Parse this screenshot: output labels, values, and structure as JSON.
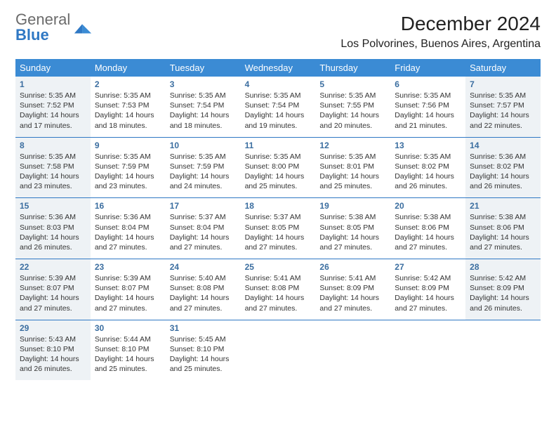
{
  "brand": {
    "word1": "General",
    "word2": "Blue"
  },
  "title": "December 2024",
  "location": "Los Polvorines, Buenos Aires, Argentina",
  "accent_color": "#3b8bd4",
  "rule_color": "#2f78c4",
  "shade_color": "#eef2f5",
  "day_headers": [
    "Sunday",
    "Monday",
    "Tuesday",
    "Wednesday",
    "Thursday",
    "Friday",
    "Saturday"
  ],
  "weeks": [
    [
      {
        "n": "1",
        "shade": true,
        "sunrise": "Sunrise: 5:35 AM",
        "sunset": "Sunset: 7:52 PM",
        "dl1": "Daylight: 14 hours",
        "dl2": "and 17 minutes."
      },
      {
        "n": "2",
        "shade": false,
        "sunrise": "Sunrise: 5:35 AM",
        "sunset": "Sunset: 7:53 PM",
        "dl1": "Daylight: 14 hours",
        "dl2": "and 18 minutes."
      },
      {
        "n": "3",
        "shade": false,
        "sunrise": "Sunrise: 5:35 AM",
        "sunset": "Sunset: 7:54 PM",
        "dl1": "Daylight: 14 hours",
        "dl2": "and 18 minutes."
      },
      {
        "n": "4",
        "shade": false,
        "sunrise": "Sunrise: 5:35 AM",
        "sunset": "Sunset: 7:54 PM",
        "dl1": "Daylight: 14 hours",
        "dl2": "and 19 minutes."
      },
      {
        "n": "5",
        "shade": false,
        "sunrise": "Sunrise: 5:35 AM",
        "sunset": "Sunset: 7:55 PM",
        "dl1": "Daylight: 14 hours",
        "dl2": "and 20 minutes."
      },
      {
        "n": "6",
        "shade": false,
        "sunrise": "Sunrise: 5:35 AM",
        "sunset": "Sunset: 7:56 PM",
        "dl1": "Daylight: 14 hours",
        "dl2": "and 21 minutes."
      },
      {
        "n": "7",
        "shade": true,
        "sunrise": "Sunrise: 5:35 AM",
        "sunset": "Sunset: 7:57 PM",
        "dl1": "Daylight: 14 hours",
        "dl2": "and 22 minutes."
      }
    ],
    [
      {
        "n": "8",
        "shade": true,
        "sunrise": "Sunrise: 5:35 AM",
        "sunset": "Sunset: 7:58 PM",
        "dl1": "Daylight: 14 hours",
        "dl2": "and 23 minutes."
      },
      {
        "n": "9",
        "shade": false,
        "sunrise": "Sunrise: 5:35 AM",
        "sunset": "Sunset: 7:59 PM",
        "dl1": "Daylight: 14 hours",
        "dl2": "and 23 minutes."
      },
      {
        "n": "10",
        "shade": false,
        "sunrise": "Sunrise: 5:35 AM",
        "sunset": "Sunset: 7:59 PM",
        "dl1": "Daylight: 14 hours",
        "dl2": "and 24 minutes."
      },
      {
        "n": "11",
        "shade": false,
        "sunrise": "Sunrise: 5:35 AM",
        "sunset": "Sunset: 8:00 PM",
        "dl1": "Daylight: 14 hours",
        "dl2": "and 25 minutes."
      },
      {
        "n": "12",
        "shade": false,
        "sunrise": "Sunrise: 5:35 AM",
        "sunset": "Sunset: 8:01 PM",
        "dl1": "Daylight: 14 hours",
        "dl2": "and 25 minutes."
      },
      {
        "n": "13",
        "shade": false,
        "sunrise": "Sunrise: 5:35 AM",
        "sunset": "Sunset: 8:02 PM",
        "dl1": "Daylight: 14 hours",
        "dl2": "and 26 minutes."
      },
      {
        "n": "14",
        "shade": true,
        "sunrise": "Sunrise: 5:36 AM",
        "sunset": "Sunset: 8:02 PM",
        "dl1": "Daylight: 14 hours",
        "dl2": "and 26 minutes."
      }
    ],
    [
      {
        "n": "15",
        "shade": true,
        "sunrise": "Sunrise: 5:36 AM",
        "sunset": "Sunset: 8:03 PM",
        "dl1": "Daylight: 14 hours",
        "dl2": "and 26 minutes."
      },
      {
        "n": "16",
        "shade": false,
        "sunrise": "Sunrise: 5:36 AM",
        "sunset": "Sunset: 8:04 PM",
        "dl1": "Daylight: 14 hours",
        "dl2": "and 27 minutes."
      },
      {
        "n": "17",
        "shade": false,
        "sunrise": "Sunrise: 5:37 AM",
        "sunset": "Sunset: 8:04 PM",
        "dl1": "Daylight: 14 hours",
        "dl2": "and 27 minutes."
      },
      {
        "n": "18",
        "shade": false,
        "sunrise": "Sunrise: 5:37 AM",
        "sunset": "Sunset: 8:05 PM",
        "dl1": "Daylight: 14 hours",
        "dl2": "and 27 minutes."
      },
      {
        "n": "19",
        "shade": false,
        "sunrise": "Sunrise: 5:38 AM",
        "sunset": "Sunset: 8:05 PM",
        "dl1": "Daylight: 14 hours",
        "dl2": "and 27 minutes."
      },
      {
        "n": "20",
        "shade": false,
        "sunrise": "Sunrise: 5:38 AM",
        "sunset": "Sunset: 8:06 PM",
        "dl1": "Daylight: 14 hours",
        "dl2": "and 27 minutes."
      },
      {
        "n": "21",
        "shade": true,
        "sunrise": "Sunrise: 5:38 AM",
        "sunset": "Sunset: 8:06 PM",
        "dl1": "Daylight: 14 hours",
        "dl2": "and 27 minutes."
      }
    ],
    [
      {
        "n": "22",
        "shade": true,
        "sunrise": "Sunrise: 5:39 AM",
        "sunset": "Sunset: 8:07 PM",
        "dl1": "Daylight: 14 hours",
        "dl2": "and 27 minutes."
      },
      {
        "n": "23",
        "shade": false,
        "sunrise": "Sunrise: 5:39 AM",
        "sunset": "Sunset: 8:07 PM",
        "dl1": "Daylight: 14 hours",
        "dl2": "and 27 minutes."
      },
      {
        "n": "24",
        "shade": false,
        "sunrise": "Sunrise: 5:40 AM",
        "sunset": "Sunset: 8:08 PM",
        "dl1": "Daylight: 14 hours",
        "dl2": "and 27 minutes."
      },
      {
        "n": "25",
        "shade": false,
        "sunrise": "Sunrise: 5:41 AM",
        "sunset": "Sunset: 8:08 PM",
        "dl1": "Daylight: 14 hours",
        "dl2": "and 27 minutes."
      },
      {
        "n": "26",
        "shade": false,
        "sunrise": "Sunrise: 5:41 AM",
        "sunset": "Sunset: 8:09 PM",
        "dl1": "Daylight: 14 hours",
        "dl2": "and 27 minutes."
      },
      {
        "n": "27",
        "shade": false,
        "sunrise": "Sunrise: 5:42 AM",
        "sunset": "Sunset: 8:09 PM",
        "dl1": "Daylight: 14 hours",
        "dl2": "and 27 minutes."
      },
      {
        "n": "28",
        "shade": true,
        "sunrise": "Sunrise: 5:42 AM",
        "sunset": "Sunset: 8:09 PM",
        "dl1": "Daylight: 14 hours",
        "dl2": "and 26 minutes."
      }
    ],
    [
      {
        "n": "29",
        "shade": true,
        "sunrise": "Sunrise: 5:43 AM",
        "sunset": "Sunset: 8:10 PM",
        "dl1": "Daylight: 14 hours",
        "dl2": "and 26 minutes."
      },
      {
        "n": "30",
        "shade": false,
        "sunrise": "Sunrise: 5:44 AM",
        "sunset": "Sunset: 8:10 PM",
        "dl1": "Daylight: 14 hours",
        "dl2": "and 25 minutes."
      },
      {
        "n": "31",
        "shade": false,
        "sunrise": "Sunrise: 5:45 AM",
        "sunset": "Sunset: 8:10 PM",
        "dl1": "Daylight: 14 hours",
        "dl2": "and 25 minutes."
      },
      null,
      null,
      null,
      null
    ]
  ]
}
